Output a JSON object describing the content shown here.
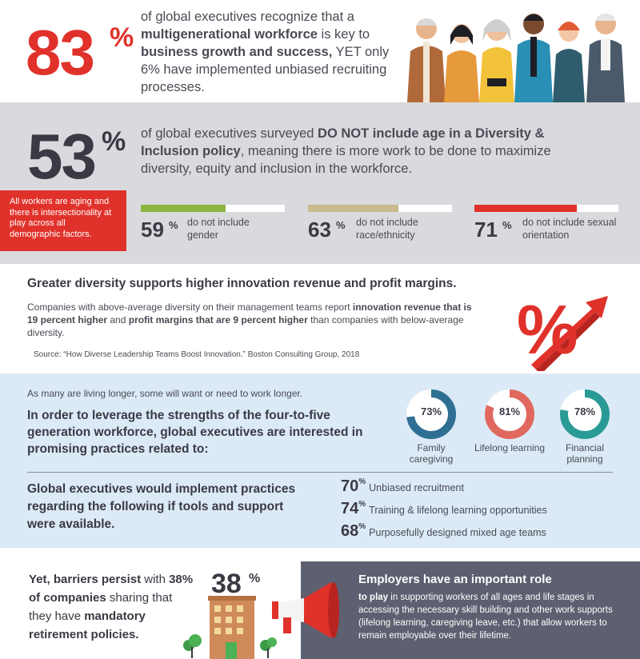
{
  "section1": {
    "big_number": "83",
    "pct": "%",
    "text_a": "of global executives recognize that a ",
    "text_b": "multigenerational workforce",
    "text_c": " is key to ",
    "text_d": "business growth and success,",
    "text_e": " YET only 6% have implemented unbiased recruiting processes."
  },
  "section2": {
    "big_number": "53",
    "pct": "%",
    "text_a": "of global executives surveyed ",
    "text_b": "DO NOT include age in a Diversity & Inclusion policy",
    "text_c": ", meaning there is more work to be done to maximize diversity, equity and inclusion in the workforce.",
    "callout": "All workers are aging and there is intersectionality at play across all demographic factors.",
    "stats": [
      {
        "value": "59",
        "pct": "%",
        "label": "do not include gender",
        "fraction": 0.59,
        "color": "#8cb440"
      },
      {
        "value": "63",
        "pct": "%",
        "label": "do not include race/ethnicity",
        "fraction": 0.63,
        "color": "#c9b98c"
      },
      {
        "value": "71",
        "pct": "%",
        "label": "do not include sexual orientation",
        "fraction": 0.71,
        "color": "#e0322b"
      }
    ]
  },
  "section3": {
    "heading": "Greater diversity supports higher innovation revenue and profit margins.",
    "p_a": "Companies with above-average diversity on their management teams report ",
    "p_b": "innovation revenue that is 19 percent higher",
    "p_c": " and ",
    "p_d": "profit margins that are 9 percent higher",
    "p_e": " than companies with below-average diversity.",
    "source": "Source: “How Diverse Leadership Teams Boost Innovation.” Boston Consulting Group, 2018",
    "percent_symbol": "%"
  },
  "section4": {
    "intro": "As many are living longer, some will want or  need to work longer.",
    "heading": "In order to leverage the strengths of the four-to-five generation workforce, global executives are interested in promising practices related to:",
    "rings": [
      {
        "value": "73%",
        "fraction": 0.73,
        "label": "Family caregiving",
        "color": "#2f6f94"
      },
      {
        "value": "81%",
        "fraction": 0.81,
        "label": "Lifelong learning",
        "color": "#e0685f"
      },
      {
        "value": "78%",
        "fraction": 0.78,
        "label": "Financial planning",
        "color": "#2a9a96"
      }
    ],
    "heading2": "Global executives would implement practices regarding the following if tools and support were available.",
    "practices": [
      {
        "value": "70",
        "pct": "%",
        "label": "Unbiased recruitment"
      },
      {
        "value": "74",
        "pct": "%",
        "label": "Training & lifelong learning opportunities"
      },
      {
        "value": "68",
        "pct": "%",
        "label": "Purposefully designed mixed age teams"
      }
    ]
  },
  "section5": {
    "text_a": "Yet, barriers persist",
    "text_b": " with ",
    "text_c": "38% of companies",
    "text_d": " sharing that they have ",
    "text_e": "mandatory retirement policies.",
    "big_number": "38",
    "pct": "%",
    "panel_heading": "Employers have an important role",
    "panel_body_a": "to play",
    "panel_body_b": " in supporting workers of all ages and life stages in accessing the necessary skill building and other work supports (lifelong learning, caregiving leave, etc.) that allow workers to remain employable over their lifetime."
  }
}
